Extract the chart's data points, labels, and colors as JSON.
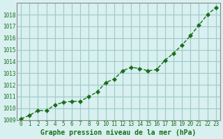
{
  "x": [
    0,
    1,
    2,
    3,
    4,
    5,
    6,
    7,
    8,
    9,
    10,
    11,
    12,
    13,
    14,
    15,
    16,
    17,
    18,
    19,
    20,
    21,
    22,
    23
  ],
  "y": [
    1009.1,
    1009.4,
    1009.8,
    1009.8,
    1010.3,
    1010.5,
    1010.6,
    1010.6,
    1011.0,
    1011.4,
    1012.2,
    1012.5,
    1013.2,
    1013.5,
    1013.4,
    1013.2,
    1013.3,
    1014.1,
    1014.7,
    1015.4,
    1016.2,
    1017.1,
    1018.0,
    1018.6
  ],
  "line_color": "#1a6e1a",
  "marker": "D",
  "marker_size": 3,
  "bg_color": "#d8f0f0",
  "grid_color": "#a0c8c8",
  "xlabel": "Graphe pression niveau de la mer (hPa)",
  "xlabel_color": "#1a6e1a",
  "tick_color": "#1a6e1a",
  "ylim": [
    1009,
    1019
  ],
  "xlim": [
    0,
    23
  ],
  "yticks": [
    1009,
    1010,
    1011,
    1012,
    1013,
    1014,
    1015,
    1016,
    1017,
    1018
  ],
  "xticks": [
    0,
    1,
    2,
    3,
    4,
    5,
    6,
    7,
    8,
    9,
    10,
    11,
    12,
    13,
    14,
    15,
    16,
    17,
    18,
    19,
    20,
    21,
    22,
    23
  ]
}
